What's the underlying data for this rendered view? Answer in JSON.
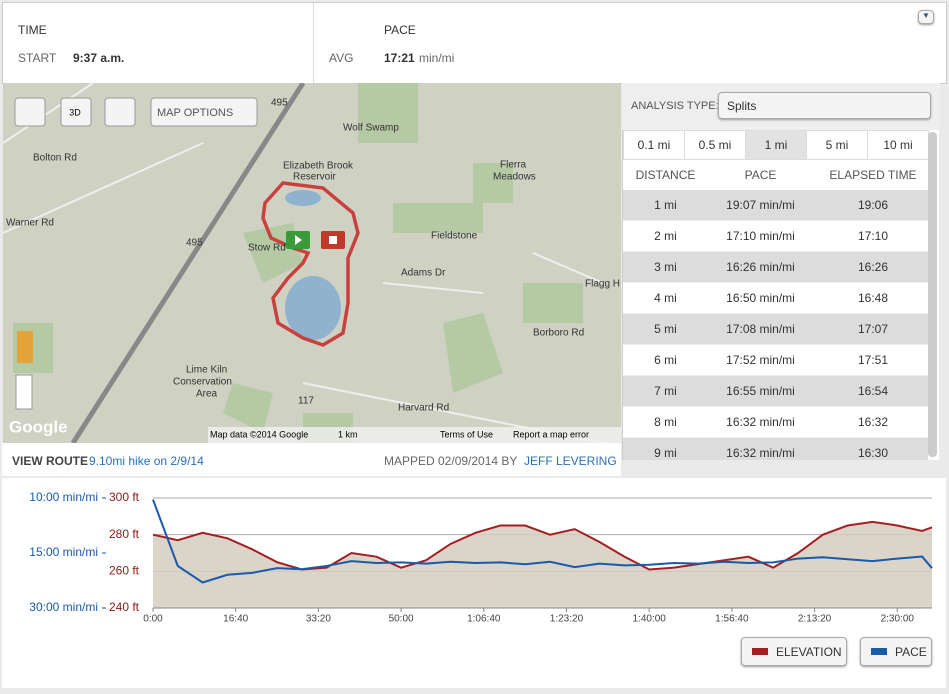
{
  "header": {
    "time_label": "TIME",
    "start_label": "START",
    "start": "9:37 a.m.",
    "pace_label": "PACE",
    "avg_label": "AVG",
    "avg": "17:21",
    "avg_unit": "min/mi"
  },
  "map": {
    "three_d": "3D",
    "options": "MAP OPTIONS",
    "labels": [
      "Wolf Swamp",
      "Elizabeth Brook",
      "Reservoir",
      "Flerra",
      "Meadows",
      "Fieldstone",
      "Adams Dr",
      "Flagg H",
      "Lime Kiln",
      "Conservation",
      "Area",
      "Bolton Rd",
      "Warner Rd",
      "Stow Rd",
      "Harvard Rd",
      "Borboro Rd",
      "495",
      "495",
      "117",
      "Google"
    ],
    "attribution": "Map data ©2014 Google",
    "scale": "1 km",
    "terms": "Terms of Use",
    "report": "Report a map error"
  },
  "analysis": {
    "label": "ANALYSIS TYPE:",
    "selected": "Splits",
    "tabs": [
      "0.1 mi",
      "0.5 mi",
      "1 mi",
      "5 mi",
      "10 mi"
    ],
    "active_tab": 2,
    "columns": [
      "DISTANCE",
      "PACE",
      "ELAPSED TIME"
    ],
    "rows": [
      [
        "1 mi",
        "19:07 min/mi",
        "19:06"
      ],
      [
        "2 mi",
        "17:10 min/mi",
        "17:10"
      ],
      [
        "3 mi",
        "16:26 min/mi",
        "16:26"
      ],
      [
        "4 mi",
        "16:50 min/mi",
        "16:48"
      ],
      [
        "5 mi",
        "17:08 min/mi",
        "17:07"
      ],
      [
        "6 mi",
        "17:52 min/mi",
        "17:51"
      ],
      [
        "7 mi",
        "16:55 min/mi",
        "16:54"
      ],
      [
        "8 mi",
        "16:32 min/mi",
        "16:32"
      ],
      [
        "9 mi",
        "16:32 min/mi",
        "16:30"
      ]
    ]
  },
  "footer": {
    "view_route": "VIEW ROUTE",
    "route": "9.10mi hike on 2/9/14",
    "mapped": "MAPPED 02/09/2014 BY",
    "author": "JEFF LEVERING"
  },
  "chart_data": {
    "type": "line",
    "x": [
      0,
      300,
      600,
      900,
      1200,
      1500,
      1800,
      2100,
      2400,
      2700,
      3000,
      3300,
      3600,
      3900,
      4200,
      4500,
      4800,
      5100,
      5400,
      5700,
      6000,
      6300,
      6600,
      6900,
      7200,
      7500,
      7800,
      8100,
      8400,
      8700,
      9000,
      9300,
      9420
    ],
    "xlim": [
      0,
      9420
    ],
    "xticks": [
      {
        "value": 0,
        "label": "0:00"
      },
      {
        "value": 1000,
        "label": "16:40"
      },
      {
        "value": 2000,
        "label": "33:20"
      },
      {
        "value": 3000,
        "label": "50:00"
      },
      {
        "value": 4000,
        "label": "1:06:40"
      },
      {
        "value": 5000,
        "label": "1:23:20"
      },
      {
        "value": 6000,
        "label": "1:40:00"
      },
      {
        "value": 7000,
        "label": "1:56:40"
      },
      {
        "value": 8000,
        "label": "2:13:20"
      },
      {
        "value": 9000,
        "label": "2:30:00"
      }
    ],
    "ylim": [
      240,
      300
    ],
    "yticks": [
      {
        "value": 240,
        "label": "240 ft"
      },
      {
        "value": 260,
        "label": "260 ft"
      },
      {
        "value": 280,
        "label": "280 ft"
      },
      {
        "value": 300,
        "label": "300 ft"
      }
    ],
    "y2lim": [
      30,
      10
    ],
    "y2_scale": "reciprocal",
    "y2ticks": [
      {
        "value": 10,
        "label": "10:00 min/mi"
      },
      {
        "value": 15,
        "label": "15:00 min/mi"
      },
      {
        "value": 30,
        "label": "30:00 min/mi"
      }
    ],
    "grid": true,
    "series": [
      {
        "name": "ELEVATION",
        "color": "#a31f24",
        "fill": "#d3cdbf",
        "values": [
          280,
          277,
          281,
          278,
          272,
          265,
          261,
          262,
          270,
          268,
          262,
          266,
          275,
          281,
          285,
          285,
          280,
          283,
          276,
          268,
          261,
          262,
          264,
          266,
          268,
          262,
          270,
          280,
          285,
          287,
          285,
          282,
          284
        ]
      },
      {
        "name": "PACE",
        "color": "#1a5aab",
        "axis": "y2",
        "values": [
          10.1,
          17.0,
          20.5,
          18.7,
          18.3,
          17.4,
          17.6,
          17.0,
          16.2,
          16.5,
          16.4,
          16.6,
          16.3,
          16.5,
          16.4,
          16.7,
          16.3,
          17.2,
          16.6,
          16.9,
          16.8,
          16.5,
          16.6,
          16.3,
          16.5,
          16.4,
          15.8,
          15.6,
          15.9,
          16.2,
          15.8,
          15.5,
          17.4
        ]
      }
    ]
  }
}
